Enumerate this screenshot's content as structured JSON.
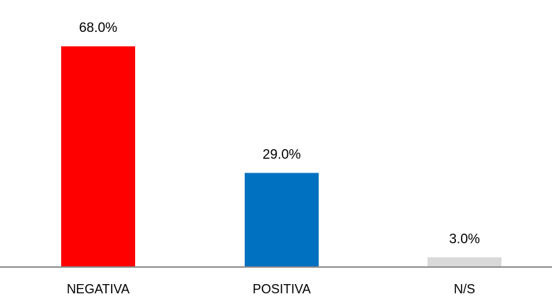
{
  "chart_data": {
    "type": "bar",
    "categories": [
      "NEGATIVA",
      "POSITIVA",
      "N/S"
    ],
    "values": [
      68.0,
      29.0,
      3.0
    ],
    "data_labels": [
      "68.0%",
      "29.0%",
      "3.0%"
    ],
    "colors": [
      "#ff0000",
      "#0070c0",
      "#d9d9d9"
    ],
    "unit": "%",
    "grid": false,
    "legend": "none"
  }
}
